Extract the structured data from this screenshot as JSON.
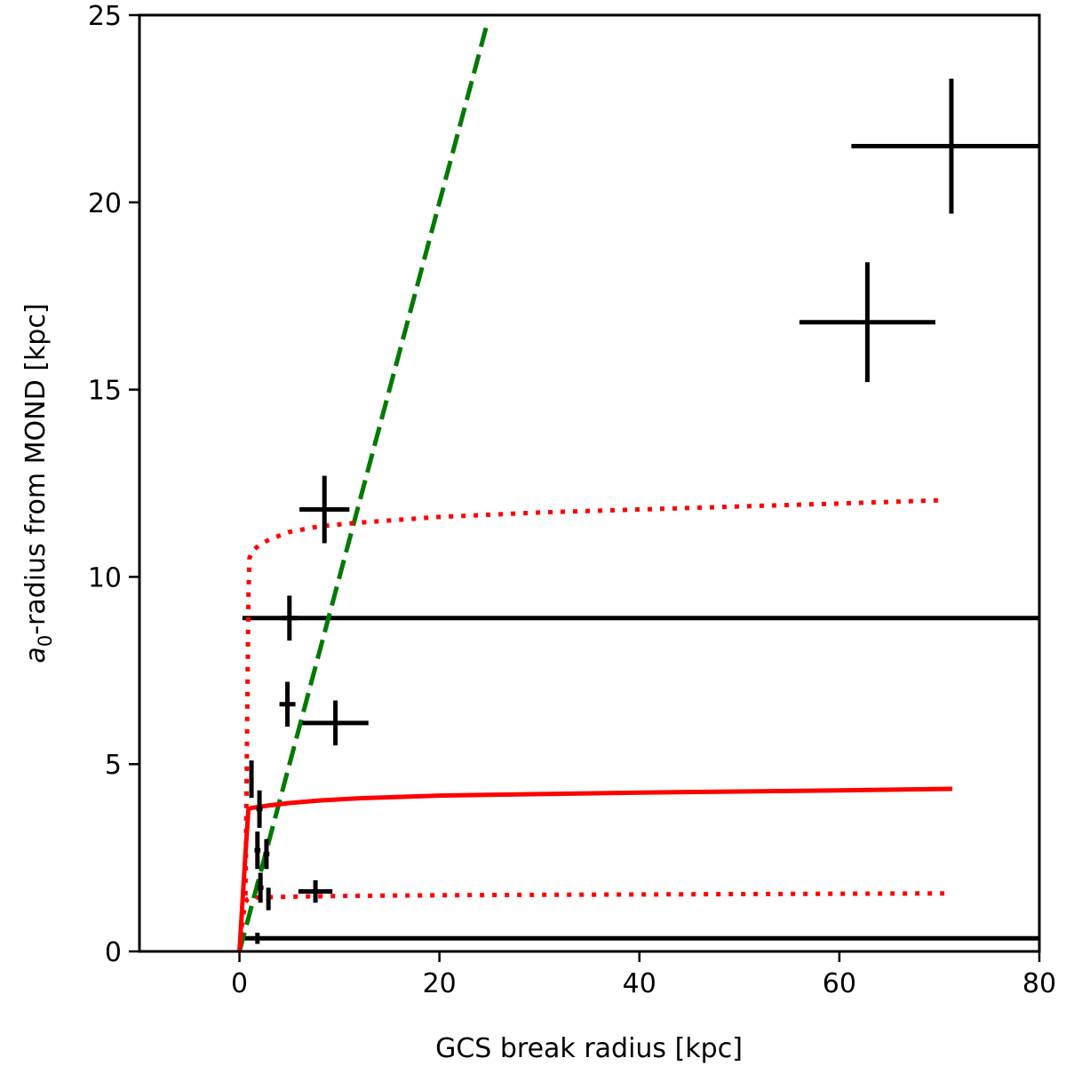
{
  "chart_data": {
    "type": "scatter",
    "xlabel": "GCS break radius [kpc]",
    "ylabel_italic": "a",
    "ylabel_sub": "0",
    "ylabel_rest": "-radius from MOND [kpc]",
    "xlim": [
      -10,
      80
    ],
    "ylim": [
      0,
      25
    ],
    "xticks": [
      0,
      20,
      40,
      60,
      80
    ],
    "yticks": [
      0,
      5,
      10,
      15,
      20,
      25
    ],
    "grid": false,
    "points": [
      {
        "x": 71.2,
        "xerr": 10.0,
        "y": 21.5,
        "yerr": 1.8
      },
      {
        "x": 62.8,
        "xerr": 6.8,
        "y": 16.8,
        "yerr": 1.6
      },
      {
        "x": 8.5,
        "xerr": 2.5,
        "y": 11.8,
        "yerr": 0.9
      },
      {
        "x": 5.0,
        "xerr": 0.8,
        "y": 8.9,
        "yerr": 0.6
      },
      {
        "x": 4.8,
        "xerr": 0.8,
        "y": 6.6,
        "yerr": 0.6
      },
      {
        "x": 9.6,
        "xerr": 3.3,
        "y": 6.1,
        "yerr": 0.6
      },
      {
        "x": 1.2,
        "xerr": 0.2,
        "y": 4.6,
        "yerr": 0.5
      },
      {
        "x": 2.0,
        "xerr": 0.3,
        "y": 3.8,
        "yerr": 0.5
      },
      {
        "x": 1.8,
        "xerr": 0.3,
        "y": 2.7,
        "yerr": 0.5
      },
      {
        "x": 2.7,
        "xerr": 0.3,
        "y": 2.6,
        "yerr": 0.4
      },
      {
        "x": 2.1,
        "xerr": 0.3,
        "y": 1.7,
        "yerr": 0.4
      },
      {
        "x": 7.6,
        "xerr": 1.7,
        "y": 1.6,
        "yerr": 0.3
      },
      {
        "x": 2.9,
        "xerr": 0.2,
        "y": 1.4,
        "yerr": 0.3
      },
      {
        "x": 1.8,
        "xerr": 0.2,
        "y": 0.35,
        "yerr": 0.15
      }
    ],
    "horizontal_lines": [
      {
        "name": "upper-horizontal-line",
        "y": 8.9,
        "x_start": 0.3,
        "x_end": 80,
        "color": "#000000"
      },
      {
        "name": "lower-horizontal-line",
        "y": 0.35,
        "x_start": 0.3,
        "x_end": 80,
        "color": "#000000"
      }
    ],
    "series": [
      {
        "name": "one-to-one-line",
        "style": "dashed",
        "color": "#007a00",
        "x": [
          0,
          24.8
        ],
        "y": [
          0,
          24.8
        ]
      },
      {
        "name": "mond-model-line",
        "style": "solid",
        "color": "#ff0000",
        "x": [
          0,
          0.3,
          0.6,
          0.9,
          1.2,
          2,
          3,
          5,
          8,
          12,
          20,
          30,
          40,
          50,
          60,
          71.3
        ],
        "y": [
          0,
          1.3,
          2.6,
          3.8,
          3.83,
          3.86,
          3.9,
          3.96,
          4.03,
          4.09,
          4.16,
          4.2,
          4.24,
          4.27,
          4.3,
          4.34
        ]
      },
      {
        "name": "upper-dotted-line",
        "style": "dotted",
        "color": "#ff0000",
        "x": [
          0.6,
          0.7,
          0.8,
          0.9,
          1.0,
          1.3,
          2,
          3,
          5,
          8,
          12,
          20,
          30,
          40,
          50,
          60,
          70.5
        ],
        "y": [
          1.5,
          4.0,
          7.0,
          9.5,
          10.5,
          10.7,
          10.85,
          11.0,
          11.2,
          11.35,
          11.45,
          11.6,
          11.72,
          11.8,
          11.88,
          11.96,
          12.05
        ]
      },
      {
        "name": "lower-dotted-line",
        "style": "dotted",
        "color": "#ff0000",
        "x": [
          0,
          0.2,
          0.4,
          0.6,
          0.8,
          1.0,
          2,
          3,
          5,
          10,
          20,
          30,
          40,
          50,
          60,
          70.5
        ],
        "y": [
          0,
          0.6,
          1.0,
          1.3,
          1.4,
          1.43,
          1.44,
          1.45,
          1.46,
          1.48,
          1.5,
          1.51,
          1.52,
          1.53,
          1.54,
          1.55
        ]
      }
    ]
  }
}
